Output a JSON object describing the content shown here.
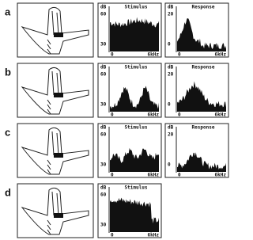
{
  "panels": [
    {
      "label": "a",
      "stimulus": {
        "title": "Stimulus",
        "unit": "dB",
        "ticks": [
          "60",
          "30"
        ],
        "x_start": "0",
        "x_end": "6kHz"
      },
      "response": {
        "title": "Response",
        "unit": "dB",
        "ticks": [
          "20",
          "0"
        ],
        "x_start": "0",
        "x_end": "6kHz"
      }
    },
    {
      "label": "b",
      "stimulus": {
        "title": "Stimulus",
        "unit": "dB",
        "ticks": [
          "60",
          "30"
        ],
        "x_start": "0",
        "x_end": "6kHz"
      },
      "response": {
        "title": "Response",
        "unit": "dB",
        "ticks": [
          "20",
          "0"
        ],
        "x_start": "0",
        "x_end": "6kHz"
      }
    },
    {
      "label": "c",
      "stimulus": {
        "title": "Stimulus",
        "unit": "dB",
        "ticks": [
          "60",
          "30"
        ],
        "x_start": "0",
        "x_end": "6kHz"
      },
      "response": {
        "title": "Response",
        "unit": "dB",
        "ticks": [
          "20",
          "0"
        ],
        "x_start": "0",
        "x_end": "6kHz"
      }
    },
    {
      "label": "d",
      "stimulus": {
        "title": "Stimulus",
        "unit": "dB",
        "ticks": [
          "60",
          "30"
        ],
        "x_start": "0",
        "x_end": "6kHz"
      }
    }
  ]
}
